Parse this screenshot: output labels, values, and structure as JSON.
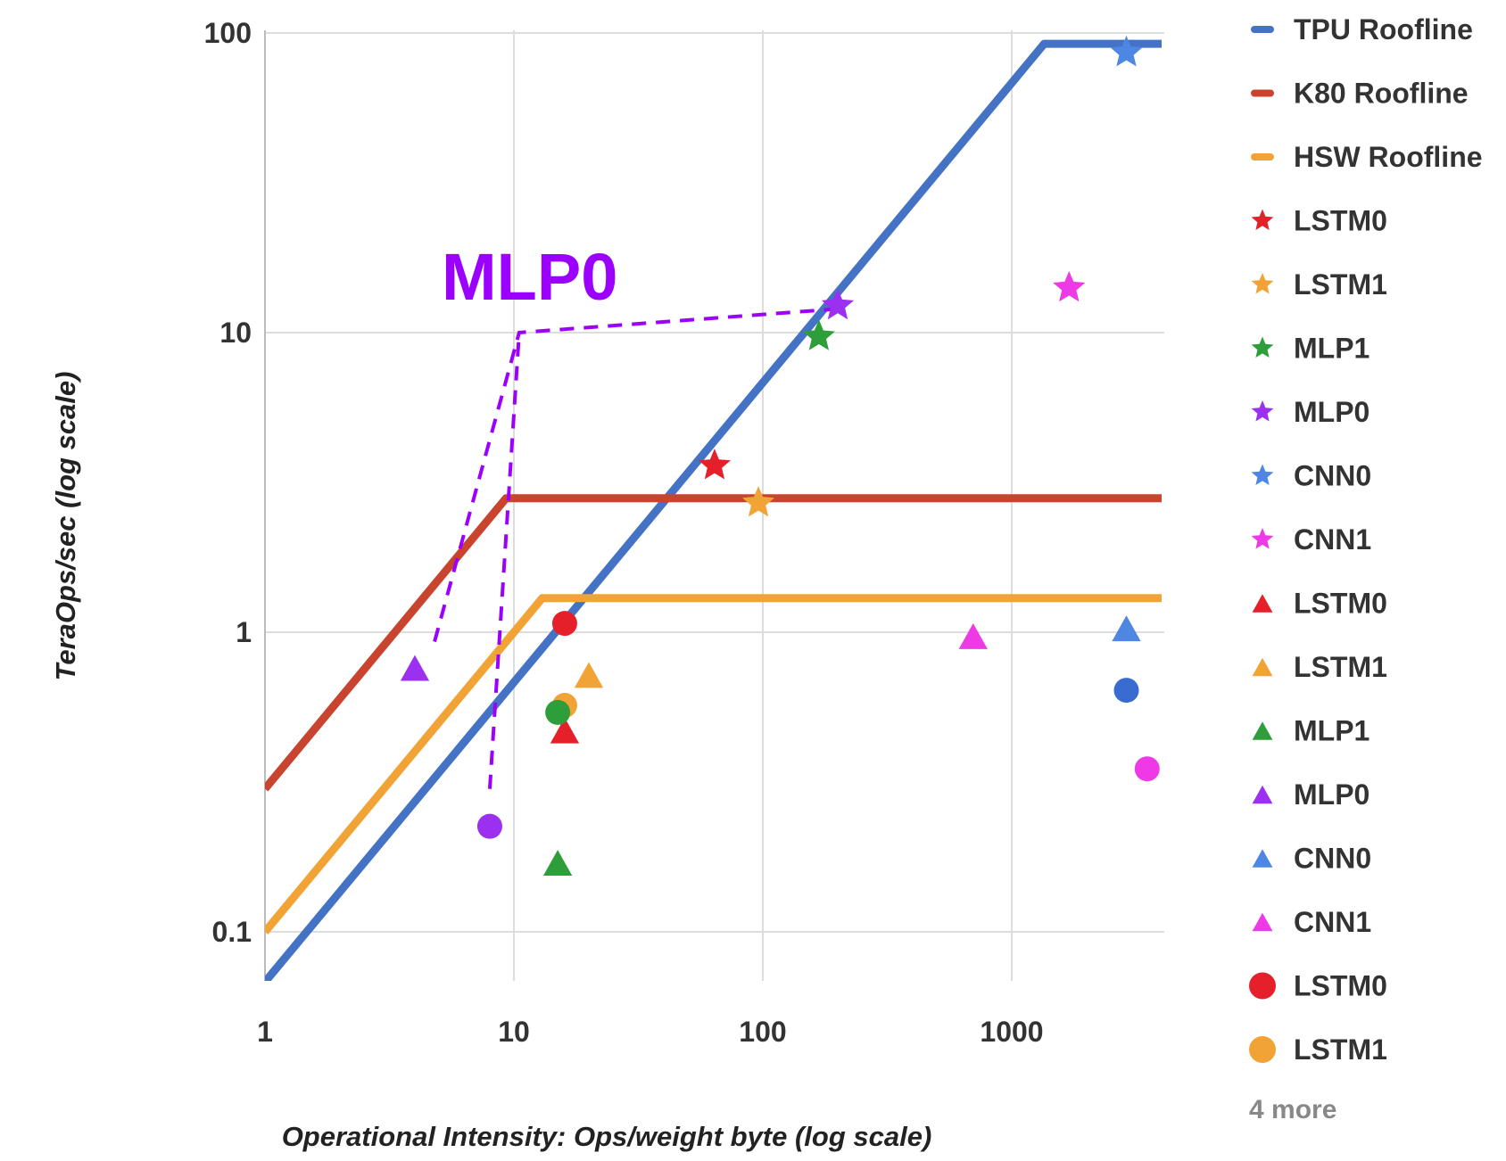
{
  "chart_data": {
    "type": "scatter",
    "xlabel": "Operational Intensity: Ops/weight byte (log scale)",
    "ylabel": "TeraOps/sec (log scale)",
    "xscale": "log",
    "yscale": "log",
    "xlim": [
      1,
      4000
    ],
    "ylim": [
      0.065,
      100
    ],
    "xticks": [
      1,
      10,
      100,
      1000
    ],
    "xtick_labels": [
      "1",
      "10",
      "100",
      "1000"
    ],
    "yticks": [
      0.1,
      1,
      10,
      100
    ],
    "ytick_labels": [
      "0.1",
      "1",
      "10",
      "100"
    ],
    "grid": true,
    "legend_position": "right",
    "rooflines": [
      {
        "name": "TPU Roofline",
        "color": "#4472C4",
        "slope_per_unit": 0.068,
        "peak": 92,
        "x": [
          1,
          1350,
          4000
        ],
        "y": [
          0.068,
          92,
          92
        ]
      },
      {
        "name": "K80 Roofline",
        "color": "#C9442E",
        "x": [
          1,
          9.3,
          4000
        ],
        "y": [
          0.3,
          2.8,
          2.8
        ]
      },
      {
        "name": "HSW Roofline",
        "color": "#F2A336",
        "x": [
          1,
          13,
          4000
        ],
        "y": [
          0.1,
          1.3,
          1.3
        ]
      }
    ],
    "series": [
      {
        "name": "LSTM0",
        "marker": "star",
        "color": "#E5202B",
        "x": 64,
        "y": 3.6
      },
      {
        "name": "LSTM1",
        "marker": "star",
        "color": "#F2A336",
        "x": 96,
        "y": 2.7
      },
      {
        "name": "MLP1",
        "marker": "star",
        "color": "#2E9E3A",
        "x": 168,
        "y": 9.7
      },
      {
        "name": "MLP0",
        "marker": "star",
        "color": "#9B30F0",
        "x": 200,
        "y": 12.3
      },
      {
        "name": "CNN0",
        "marker": "star",
        "color": "#4E86E4",
        "x": 2888,
        "y": 86
      },
      {
        "name": "CNN1",
        "marker": "star",
        "color": "#EE3AE6",
        "x": 1700,
        "y": 14.1
      },
      {
        "name": "LSTM0",
        "marker": "triangle",
        "color": "#E5202B",
        "x": 16,
        "y": 0.47
      },
      {
        "name": "LSTM1",
        "marker": "triangle",
        "color": "#F2A336",
        "x": 20,
        "y": 0.72
      },
      {
        "name": "MLP1",
        "marker": "triangle",
        "color": "#2E9E3A",
        "x": 15,
        "y": 0.17
      },
      {
        "name": "MLP0",
        "marker": "triangle",
        "color": "#9B30F0",
        "x": 4,
        "y": 0.76
      },
      {
        "name": "CNN0",
        "marker": "triangle",
        "color": "#4E86E4",
        "x": 2888,
        "y": 1.03
      },
      {
        "name": "CNN1",
        "marker": "triangle",
        "color": "#EE3AE6",
        "x": 700,
        "y": 0.97
      },
      {
        "name": "LSTM0",
        "marker": "circle",
        "color": "#E5202B",
        "x": 16,
        "y": 1.07
      },
      {
        "name": "LSTM1",
        "marker": "circle",
        "color": "#F2A336",
        "x": 16,
        "y": 0.57
      },
      {
        "name": "MLP1",
        "marker": "circle",
        "color": "#2E9E3A",
        "x": 15,
        "y": 0.54
      },
      {
        "name": "MLP0",
        "marker": "circle",
        "color": "#9B30F0",
        "x": 8,
        "y": 0.225
      },
      {
        "name": "CNN0",
        "marker": "circle",
        "color": "#3A6BD1",
        "x": 2888,
        "y": 0.64
      },
      {
        "name": "CNN1",
        "marker": "circle",
        "color": "#EE3AE6",
        "x": 3500,
        "y": 0.35
      }
    ],
    "legend": [
      {
        "label": "TPU Roofline",
        "marker": "line",
        "color": "#4472C4"
      },
      {
        "label": "K80 Roofline",
        "marker": "line",
        "color": "#C9442E"
      },
      {
        "label": "HSW Roofline",
        "marker": "line",
        "color": "#F2A336"
      },
      {
        "label": "LSTM0",
        "marker": "star",
        "color": "#E5202B"
      },
      {
        "label": "LSTM1",
        "marker": "star",
        "color": "#F2A336"
      },
      {
        "label": "MLP1",
        "marker": "star",
        "color": "#2E9E3A"
      },
      {
        "label": "MLP0",
        "marker": "star",
        "color": "#9B30F0"
      },
      {
        "label": "CNN0",
        "marker": "star",
        "color": "#4E86E4"
      },
      {
        "label": "CNN1",
        "marker": "star",
        "color": "#EE3AE6"
      },
      {
        "label": "LSTM0",
        "marker": "triangle",
        "color": "#E5202B"
      },
      {
        "label": "LSTM1",
        "marker": "triangle",
        "color": "#F2A336"
      },
      {
        "label": "MLP1",
        "marker": "triangle",
        "color": "#2E9E3A"
      },
      {
        "label": "MLP0",
        "marker": "triangle",
        "color": "#9B30F0"
      },
      {
        "label": "CNN0",
        "marker": "triangle",
        "color": "#4E86E4"
      },
      {
        "label": "CNN1",
        "marker": "triangle",
        "color": "#EE3AE6"
      },
      {
        "label": "LSTM0",
        "marker": "circle",
        "color": "#E5202B"
      },
      {
        "label": "LSTM1",
        "marker": "circle",
        "color": "#F2A336"
      }
    ],
    "legend_more": "4 more",
    "annotation": {
      "text": "MLP0",
      "color": "#9B00FF",
      "connector_style": "dashed",
      "connector_points": [
        {
          "x": 4.8,
          "y": 0.93
        },
        {
          "x": 10.5,
          "y": 10
        },
        {
          "x": 200,
          "y": 12
        }
      ],
      "connector_points_2": [
        {
          "x": 8,
          "y": 0.3
        },
        {
          "x": 10.5,
          "y": 10
        }
      ]
    }
  }
}
